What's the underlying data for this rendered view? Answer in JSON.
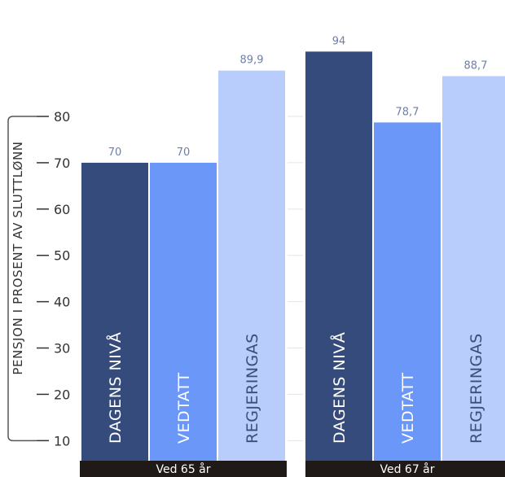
{
  "chart_data": {
    "type": "bar",
    "ylabel": "PENSJON I PROSENT AV SLUTTLØNN",
    "yticks": [
      10,
      20,
      30,
      40,
      50,
      60,
      70,
      80
    ],
    "ylim": [
      0,
      94
    ],
    "grid": false,
    "groups": [
      {
        "label": "Ved 65 år",
        "bars": [
          {
            "name": "DAGENS NIVÅ",
            "value": 70,
            "value_label": "70"
          },
          {
            "name": "VEDTATT",
            "value": 70,
            "value_label": "70"
          },
          {
            "name": "REGJERINGAS",
            "value": 89.9,
            "value_label": "89,9"
          }
        ]
      },
      {
        "label": "Ved 67 år",
        "bars": [
          {
            "name": "DAGENS NIVÅ",
            "value": 94,
            "value_label": "94"
          },
          {
            "name": "VEDTATT",
            "value": 78.7,
            "value_label": "78,7"
          },
          {
            "name": "REGJERINGAS",
            "value": 88.7,
            "value_label": "88,7"
          }
        ]
      }
    ],
    "colors": {
      "DAGENS NIVÅ": "#354b7c",
      "VEDTATT": "#6b97f8",
      "REGJERINGAS": "#b8cdfb",
      "group_bar": "#1f1a17",
      "axis": "#333333",
      "value_text": "#6e7fa8"
    }
  }
}
